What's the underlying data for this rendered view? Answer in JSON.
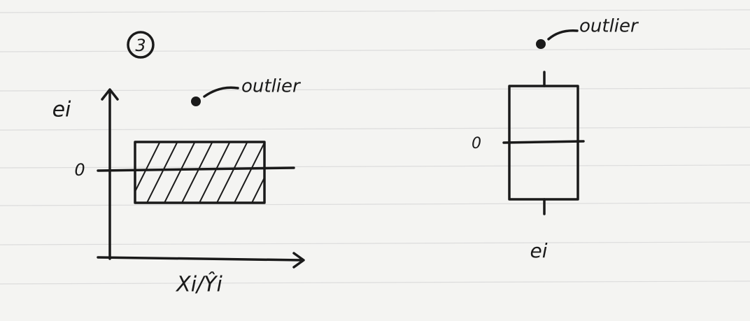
{
  "left_plot": {
    "number": "3",
    "y_label": "ei",
    "zero_label": "0",
    "outlier_label": "outlier",
    "x_label": "Xi/Ŷi"
  },
  "right_plot": {
    "outlier_label": "outlier",
    "zero_label": "0",
    "axis_label": "ei"
  }
}
